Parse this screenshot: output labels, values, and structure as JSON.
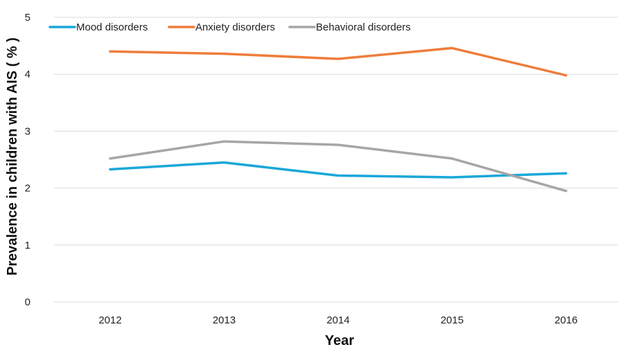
{
  "chart_data": {
    "type": "line",
    "title": "",
    "xlabel": "Year",
    "ylabel": "Prevalence in children with AIS ( % )",
    "categories": [
      "2012",
      "2013",
      "2014",
      "2015",
      "2016"
    ],
    "ylim": [
      0,
      5
    ],
    "yticks": [
      "0",
      "1",
      "2",
      "3",
      "4",
      "5"
    ],
    "grid": true,
    "legend_position": "top-left",
    "series": [
      {
        "name": "Mood disorders",
        "color": "#1aa7d8",
        "values": [
          2.33,
          2.45,
          2.22,
          2.19,
          2.26
        ]
      },
      {
        "name": "Anxiety disorders",
        "color": "#ee7d3b",
        "values": [
          4.4,
          4.36,
          4.27,
          4.46,
          3.98
        ]
      },
      {
        "name": "Behavioral disorders",
        "color": "#a6a6a6",
        "values": [
          2.52,
          2.82,
          2.76,
          2.52,
          1.95
        ]
      }
    ]
  }
}
